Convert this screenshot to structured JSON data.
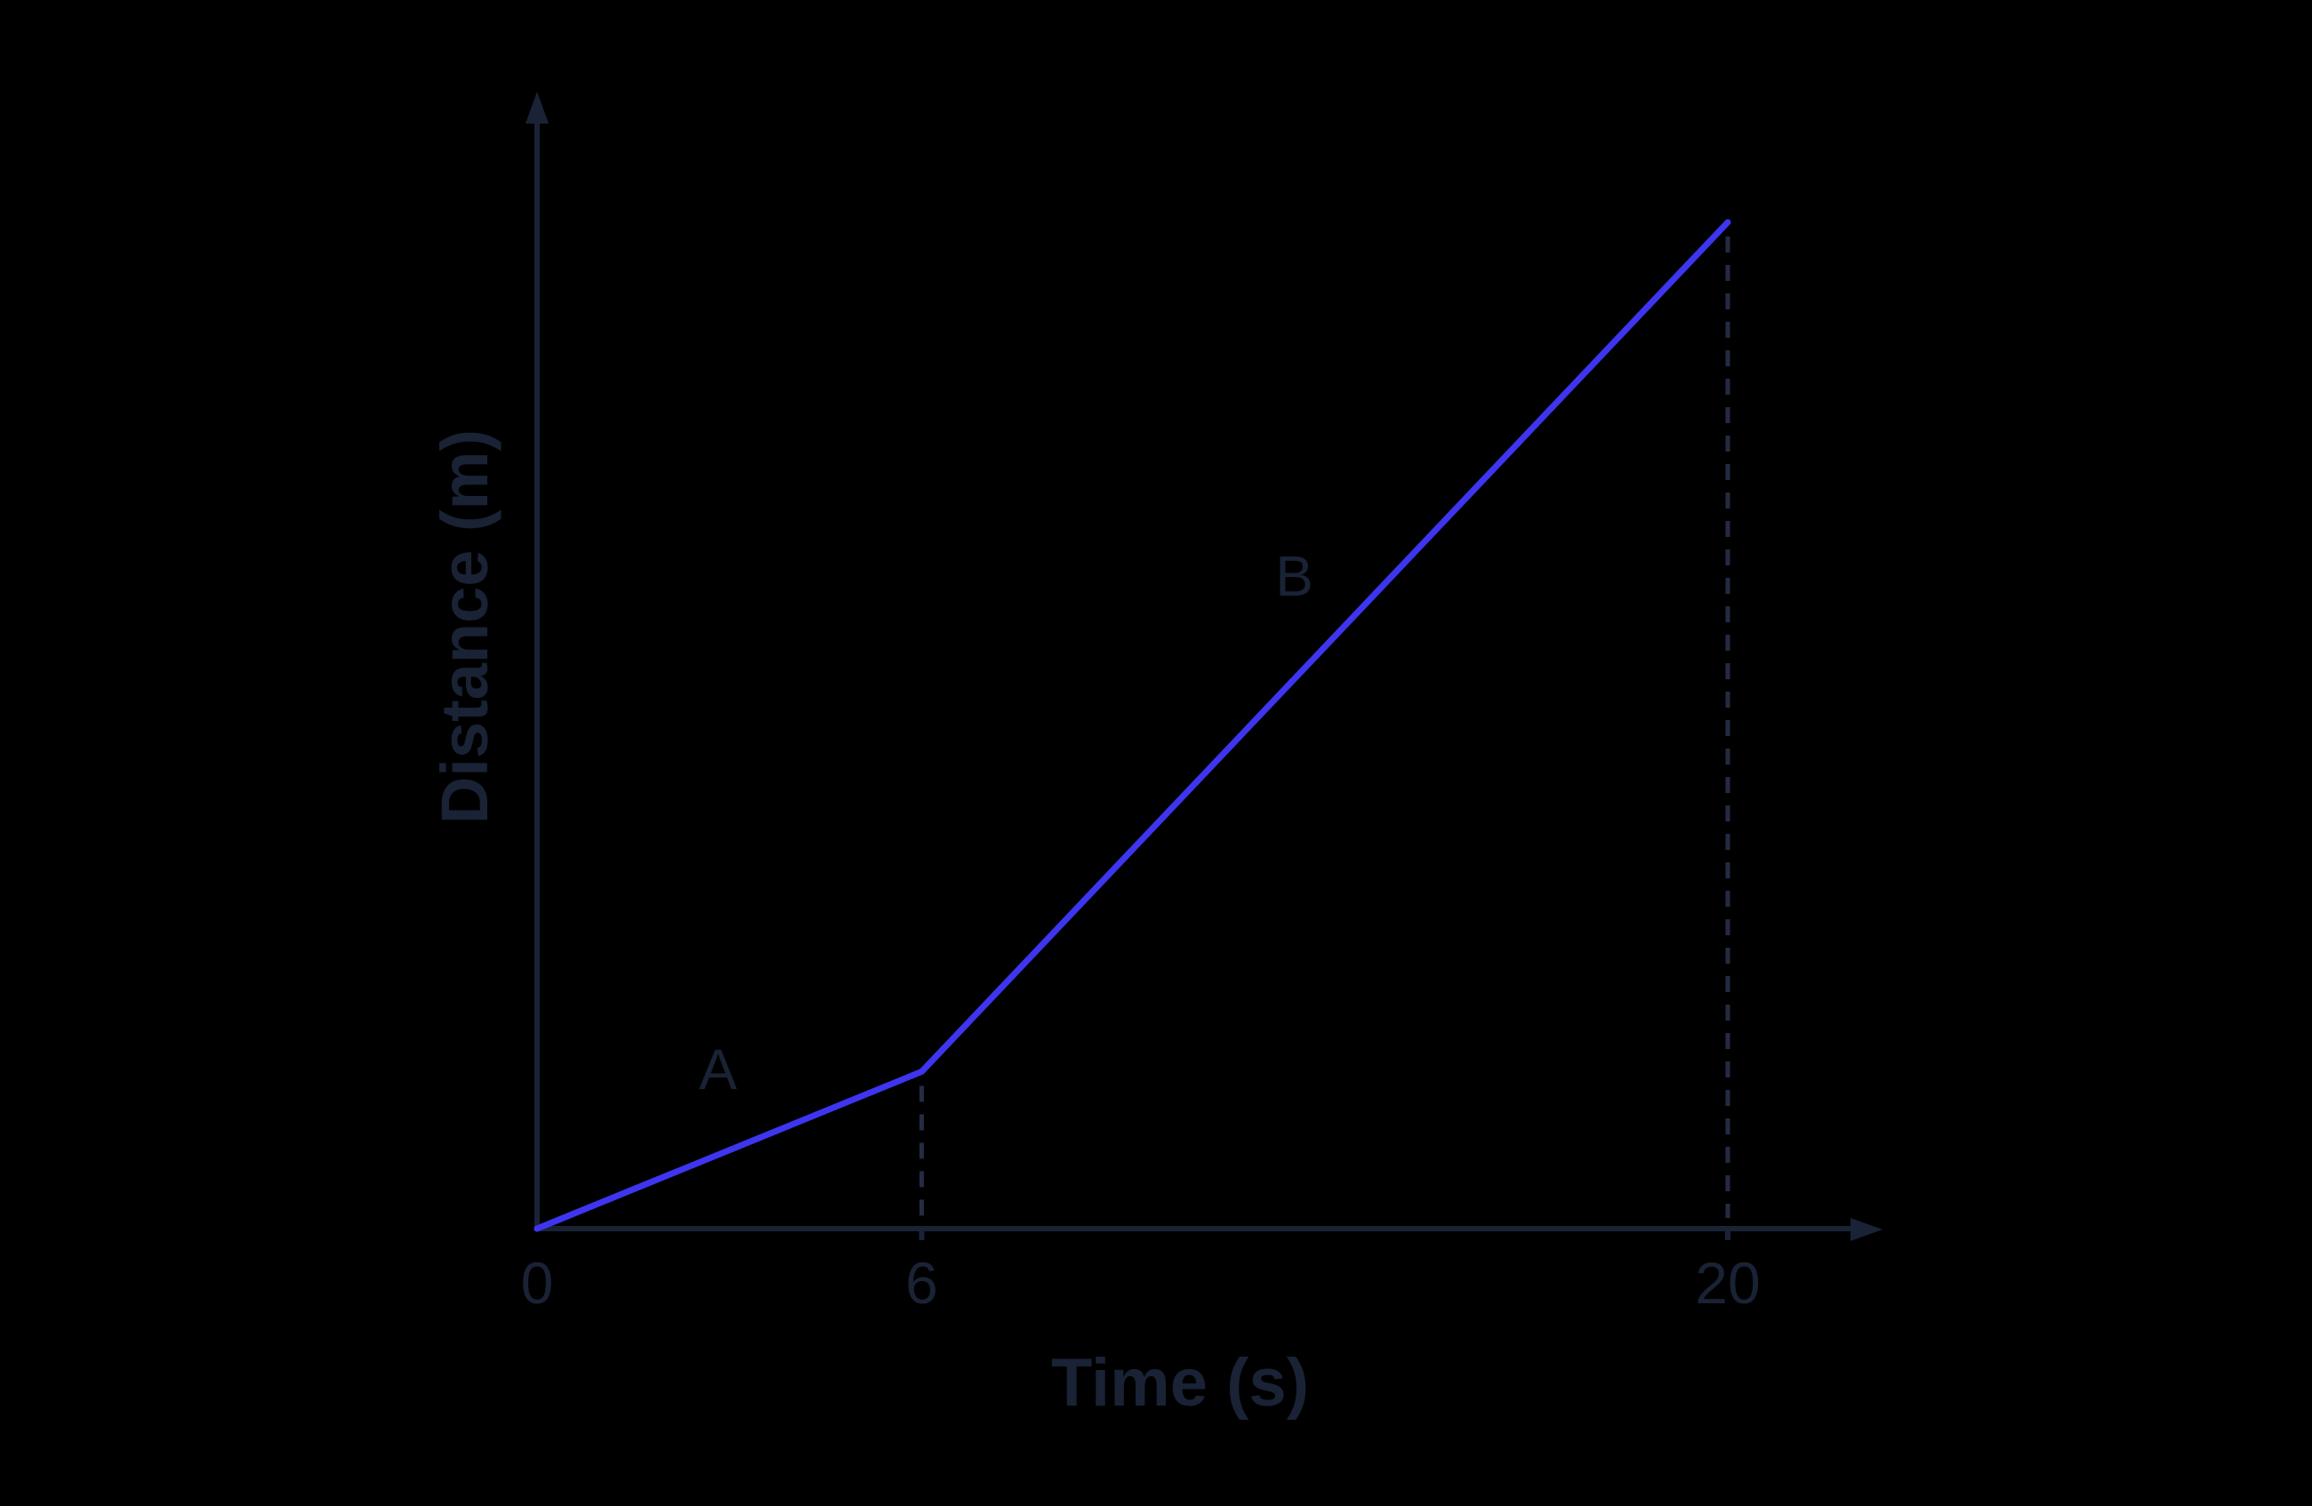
{
  "figure": {
    "background": "#000000",
    "ink_color": "#1a2235",
    "accent_color": "#3e35f0"
  },
  "chart_data": {
    "type": "line",
    "title": "",
    "xlabel": "Time (s)",
    "ylabel": "Distance (m)",
    "grid": false,
    "legend": false,
    "axis_color": "#1a2235",
    "dash_color": "#242b42",
    "x_axis": {
      "arrow": true,
      "ticks": [
        {
          "label": "0",
          "value": 0,
          "frac": 0.0
        },
        {
          "label": "6",
          "value": 6,
          "frac": 0.323
        },
        {
          "label": "20",
          "value": 20,
          "frac": 1.0
        }
      ]
    },
    "y_axis": {
      "arrow": true,
      "unlabeled": true,
      "ticks": []
    },
    "series": [
      {
        "name": "distance-vs-time",
        "color": "#3e35f0",
        "points": [
          {
            "t": 0,
            "d_rel": 0.0,
            "fx": 0.0,
            "fy": 0.0
          },
          {
            "t": 6,
            "d_rel": 0.156,
            "fx": 0.323,
            "fy": 0.156
          },
          {
            "t": 20,
            "d_rel": 1.0,
            "fx": 1.0,
            "fy": 1.0
          }
        ],
        "segments": [
          {
            "label": "A",
            "from_t": 0,
            "to_t": 6,
            "description": "shallow constant slope"
          },
          {
            "label": "B",
            "from_t": 6,
            "to_t": 20,
            "description": "steep constant slope"
          }
        ]
      }
    ],
    "segment_labels": [
      {
        "label": "A",
        "fx": 0.152,
        "fy": 0.158
      },
      {
        "label": "B",
        "fx": 0.636,
        "fy": 0.648
      }
    ],
    "guides": [
      {
        "type": "dashed-vertical",
        "x_value": 6,
        "fx": 0.323,
        "fy": 0.156
      },
      {
        "type": "dashed-vertical",
        "x_value": 20,
        "fx": 1.0,
        "fy": 1.0
      }
    ]
  }
}
